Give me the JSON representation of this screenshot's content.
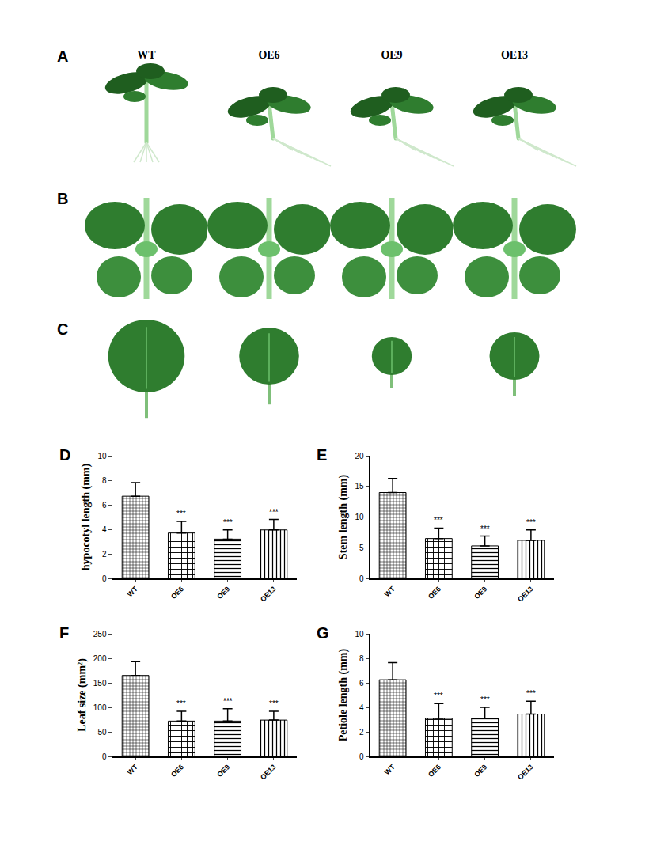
{
  "panels": [
    {
      "title": "A",
      "labels": [
        "WT",
        "OE6",
        "OE9",
        "OE13"
      ]
    },
    {
      "title": "B"
    },
    {
      "title": "C"
    }
  ],
  "chart_data": [
    {
      "type": "bar",
      "title": "D",
      "categories": [
        "WT",
        "OE6",
        "OE9",
        "OE13"
      ],
      "values": [
        6.7,
        3.7,
        3.2,
        3.95
      ],
      "errors": [
        1.1,
        0.95,
        0.75,
        0.85
      ],
      "y_label": "hypocotyl length (mm)",
      "ylim": [
        0,
        10
      ],
      "yticks": [
        0,
        2,
        4,
        6,
        8,
        10
      ],
      "color": "#000000",
      "annotations": [
        {
          "category": "OE6",
          "text": "***"
        },
        {
          "category": "OE9",
          "text": "***"
        },
        {
          "category": "OE13",
          "text": "***"
        }
      ]
    },
    {
      "type": "bar",
      "title": "E",
      "categories": [
        "WT",
        "OE6",
        "OE9",
        "OE13"
      ],
      "values": [
        14,
        6.5,
        5.3,
        6.2
      ],
      "errors": [
        2.3,
        1.7,
        1.6,
        1.7
      ],
      "y_label": "Stem length (mm)",
      "ylim": [
        0,
        20
      ],
      "yticks": [
        0,
        5,
        10,
        15,
        20
      ],
      "color": "#000000",
      "annotations": [
        {
          "category": "OE6",
          "text": "***"
        },
        {
          "category": "OE9",
          "text": "***"
        },
        {
          "category": "OE13",
          "text": "***"
        }
      ]
    },
    {
      "type": "bar",
      "title": "F",
      "categories": [
        "WT",
        "OE6",
        "OE9",
        "OE13"
      ],
      "values": [
        165,
        72,
        72,
        74
      ],
      "errors": [
        28,
        20,
        25,
        18
      ],
      "y_label": "Leaf size (mm²)",
      "ylim": [
        0,
        250
      ],
      "yticks": [
        0,
        50,
        100,
        150,
        200,
        250
      ],
      "color": "#000000",
      "annotations": [
        {
          "category": "OE6",
          "text": "***"
        },
        {
          "category": "OE9",
          "text": "***"
        },
        {
          "category": "OE13",
          "text": "***"
        }
      ]
    },
    {
      "type": "bar",
      "title": "G",
      "categories": [
        "WT",
        "OE6",
        "OE9",
        "OE13"
      ],
      "values": [
        6.25,
        3.1,
        3.1,
        3.45
      ],
      "errors": [
        1.4,
        1.2,
        0.9,
        1.05
      ],
      "y_label": "Petiole length (mm)",
      "ylim": [
        0,
        10
      ],
      "yticks": [
        0,
        2,
        4,
        6,
        8,
        10
      ],
      "color": "#000000",
      "annotations": [
        {
          "category": "OE6",
          "text": "***"
        },
        {
          "category": "OE9",
          "text": "***"
        },
        {
          "category": "OE13",
          "text": "***"
        }
      ]
    }
  ]
}
